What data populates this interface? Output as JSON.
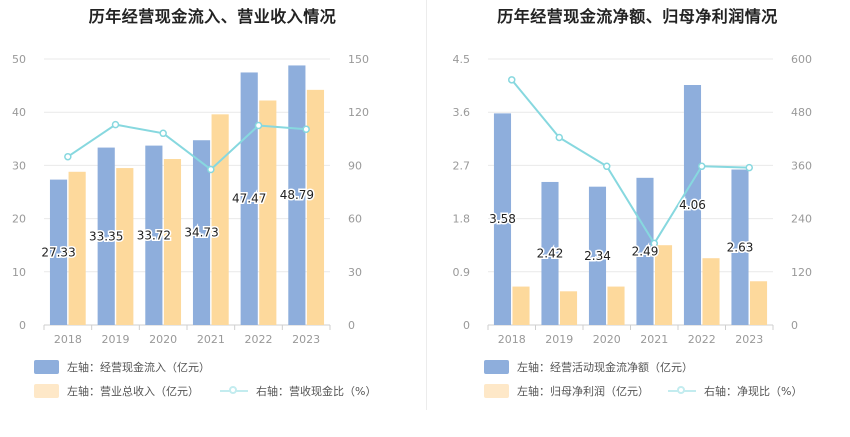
{
  "colors": {
    "bar_primary": "#8eaedc",
    "bar_secondary": "#fdd99c",
    "line": "#87d8df",
    "axis_text": "#999999",
    "grid": "#e9e9e9"
  },
  "chart_data": [
    {
      "type": "bar",
      "title": "历年经营现金流入、营业收入情况",
      "categories": [
        "2018",
        "2019",
        "2020",
        "2021",
        "2022",
        "2023"
      ],
      "y_left": {
        "ticks": [
          "0",
          "10",
          "20",
          "30",
          "40",
          "50"
        ],
        "ylim": [
          0,
          50
        ]
      },
      "y_right": {
        "ticks": [
          "0",
          "30",
          "60",
          "90",
          "120",
          "150"
        ],
        "ylim": [
          0,
          150
        ]
      },
      "series": [
        {
          "name": "左轴：经营现金流入（亿元）",
          "kind": "bar",
          "axis": "left",
          "values": [
            27.33,
            33.35,
            33.72,
            34.73,
            47.47,
            48.79
          ],
          "labels": [
            "27.33",
            "33.35",
            "33.72",
            "34.73",
            "47.47",
            "48.79"
          ]
        },
        {
          "name": "左轴：营业总收入（亿元）",
          "kind": "bar",
          "axis": "left",
          "values": [
            28.8,
            29.5,
            31.2,
            39.6,
            42.2,
            44.2
          ]
        },
        {
          "name": "右轴：营收现金比（%）",
          "kind": "line",
          "axis": "right",
          "values": [
            94.9,
            113.0,
            108.1,
            87.7,
            112.5,
            110.4
          ]
        }
      ],
      "grid": true,
      "legend_position": "bottom"
    },
    {
      "type": "bar",
      "title": "历年经营现金流净额、归母净利润情况",
      "categories": [
        "2018",
        "2019",
        "2020",
        "2021",
        "2022",
        "2023"
      ],
      "y_left": {
        "ticks": [
          "0",
          "0.9",
          "1.8",
          "2.7",
          "3.6",
          "4.5"
        ],
        "ylim": [
          0,
          4.5
        ]
      },
      "y_right": {
        "ticks": [
          "0",
          "120",
          "240",
          "360",
          "480",
          "600"
        ],
        "ylim": [
          0,
          600
        ]
      },
      "series": [
        {
          "name": "左轴：经营活动现金流净额（亿元）",
          "kind": "bar",
          "axis": "left",
          "values": [
            3.58,
            2.42,
            2.34,
            2.49,
            4.06,
            2.63
          ],
          "labels": [
            "3.58",
            "2.42",
            "2.34",
            "2.49",
            "4.06",
            "2.63"
          ]
        },
        {
          "name": "左轴：归母净利润（亿元）",
          "kind": "bar",
          "axis": "left",
          "values": [
            0.65,
            0.57,
            0.65,
            1.35,
            1.13,
            0.74
          ]
        },
        {
          "name": "右轴：净现比（%）",
          "kind": "line",
          "axis": "right",
          "values": [
            553,
            423,
            358,
            184,
            358,
            355
          ]
        }
      ],
      "grid": true,
      "legend_position": "bottom"
    }
  ]
}
